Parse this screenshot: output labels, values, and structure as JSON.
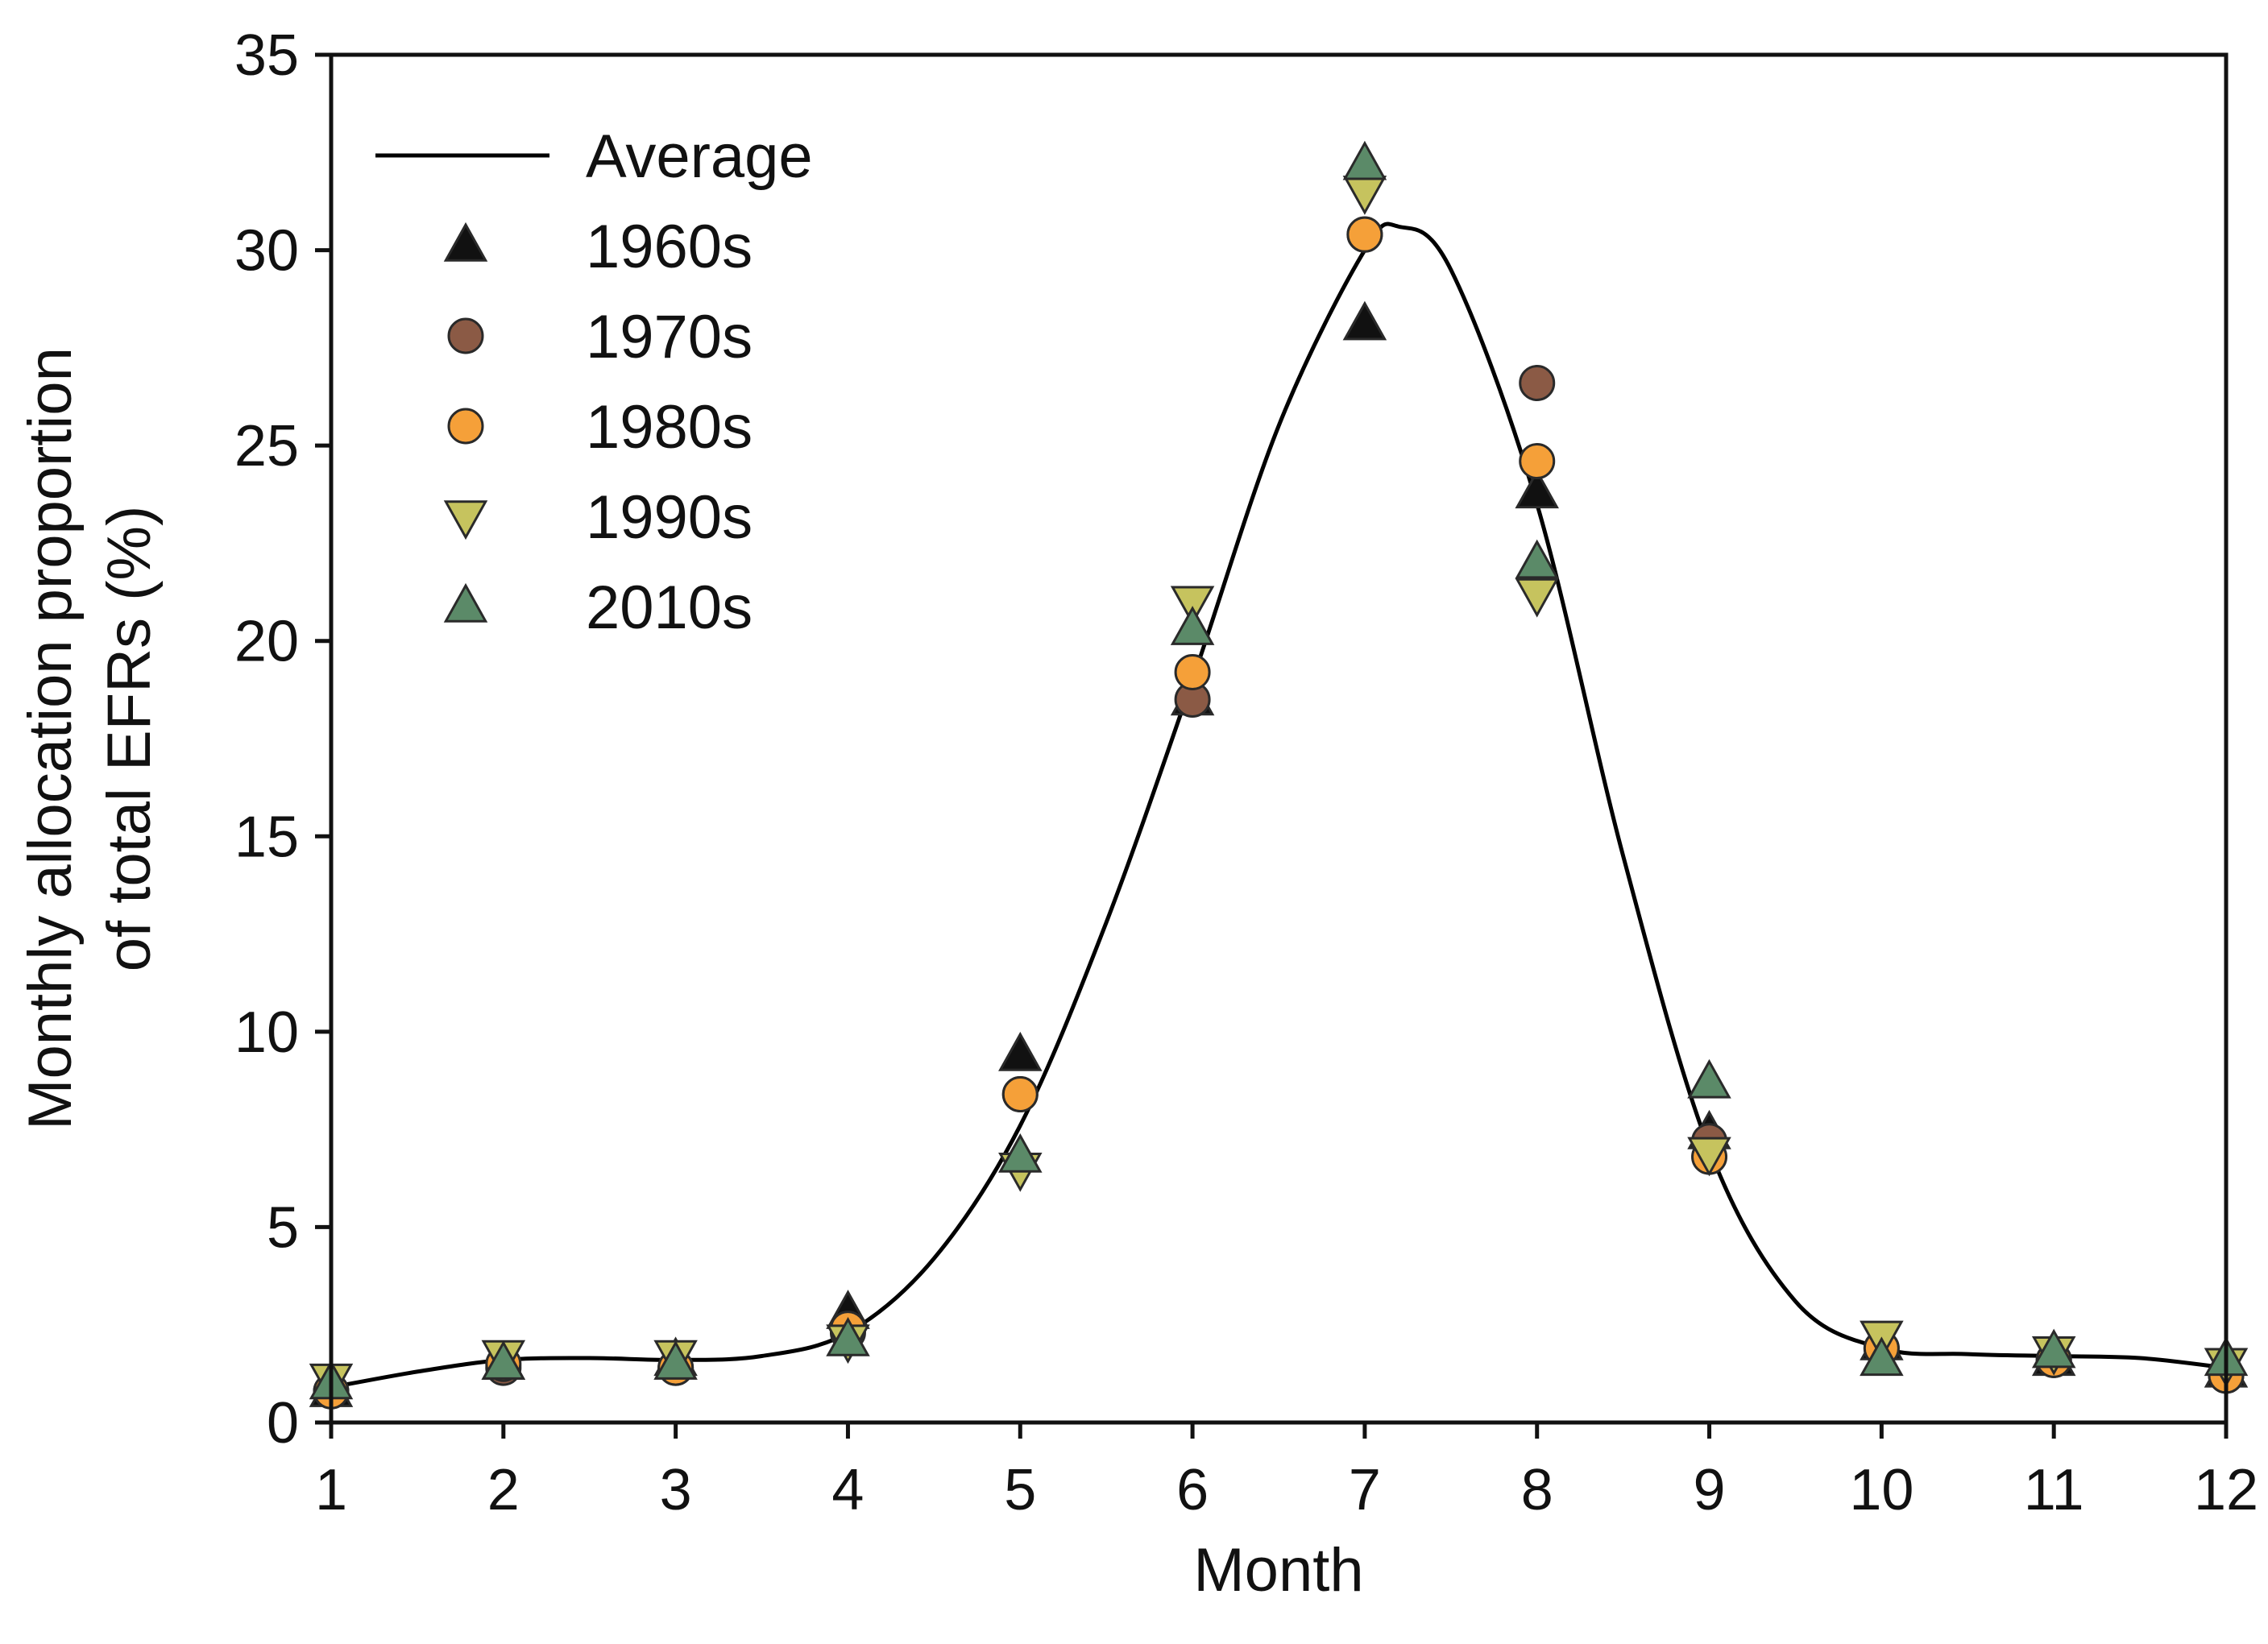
{
  "chart_data": {
    "type": "scatter",
    "title": "",
    "xlabel": "Month",
    "ylabel_line1": "Monthly allocation proportion",
    "ylabel_line2": "of total EFRs (%)",
    "xlim": [
      1,
      12
    ],
    "ylim": [
      0,
      35
    ],
    "x_ticks": [
      1,
      2,
      3,
      4,
      5,
      6,
      7,
      8,
      9,
      10,
      11,
      12
    ],
    "y_ticks": [
      0,
      5,
      10,
      15,
      20,
      25,
      30,
      35
    ],
    "grid": false,
    "legend_position": "top-left",
    "average_line": {
      "name": "Average",
      "color": "#000000",
      "x": [
        1,
        1.5,
        2,
        2.5,
        3,
        3.5,
        4,
        4.5,
        5,
        5.5,
        6,
        6.5,
        7,
        7.2,
        7.5,
        8,
        8.5,
        9,
        9.5,
        10,
        10.5,
        11,
        11.5,
        12
      ],
      "y": [
        0.9,
        1.3,
        1.6,
        1.65,
        1.6,
        1.7,
        2.3,
        4.2,
        7.6,
        12.8,
        19.0,
        25.5,
        30.0,
        30.6,
        29.5,
        23.5,
        14.5,
        7.0,
        3.1,
        1.9,
        1.75,
        1.7,
        1.65,
        1.4
      ]
    },
    "series": [
      {
        "name": "1960s",
        "marker": "triangle-up",
        "color": "#111111",
        "x": [
          1,
          2,
          3,
          4,
          5,
          6,
          7,
          8,
          9,
          10,
          11,
          12
        ],
        "y": [
          0.8,
          1.5,
          1.6,
          2.8,
          9.4,
          18.5,
          28.1,
          23.8,
          7.4,
          2.0,
          1.6,
          1.3
        ]
      },
      {
        "name": "1970s",
        "marker": "circle",
        "color": "#8b5a45",
        "x": [
          1,
          2,
          3,
          4,
          5,
          6,
          7,
          8,
          9,
          10,
          11,
          12
        ],
        "y": [
          0.8,
          1.4,
          1.4,
          2.3,
          8.4,
          18.5,
          30.4,
          26.6,
          7.2,
          1.9,
          1.6,
          1.2
        ]
      },
      {
        "name": "1980s",
        "marker": "circle",
        "color": "#f5a039",
        "x": [
          1,
          2,
          3,
          4,
          5,
          6,
          7,
          8,
          9,
          10,
          11,
          12
        ],
        "y": [
          0.8,
          1.5,
          1.4,
          2.4,
          8.4,
          19.2,
          30.4,
          24.6,
          6.8,
          1.9,
          1.6,
          1.2
        ]
      },
      {
        "name": "1990s",
        "marker": "triangle-down",
        "color": "#c6c35e",
        "x": [
          1,
          2,
          3,
          4,
          5,
          6,
          7,
          8,
          9,
          10,
          11,
          12
        ],
        "y": [
          1.1,
          1.7,
          1.7,
          2.1,
          6.5,
          21.0,
          31.5,
          21.2,
          6.9,
          2.2,
          1.8,
          1.5
        ]
      },
      {
        "name": "2010s",
        "marker": "triangle-up",
        "color": "#5b8a68",
        "x": [
          1,
          2,
          3,
          4,
          5,
          6,
          7,
          8,
          9,
          10,
          11,
          12
        ],
        "y": [
          1.0,
          1.5,
          1.5,
          2.1,
          6.8,
          20.3,
          32.2,
          22.0,
          8.7,
          1.6,
          1.8,
          1.6
        ]
      }
    ]
  }
}
